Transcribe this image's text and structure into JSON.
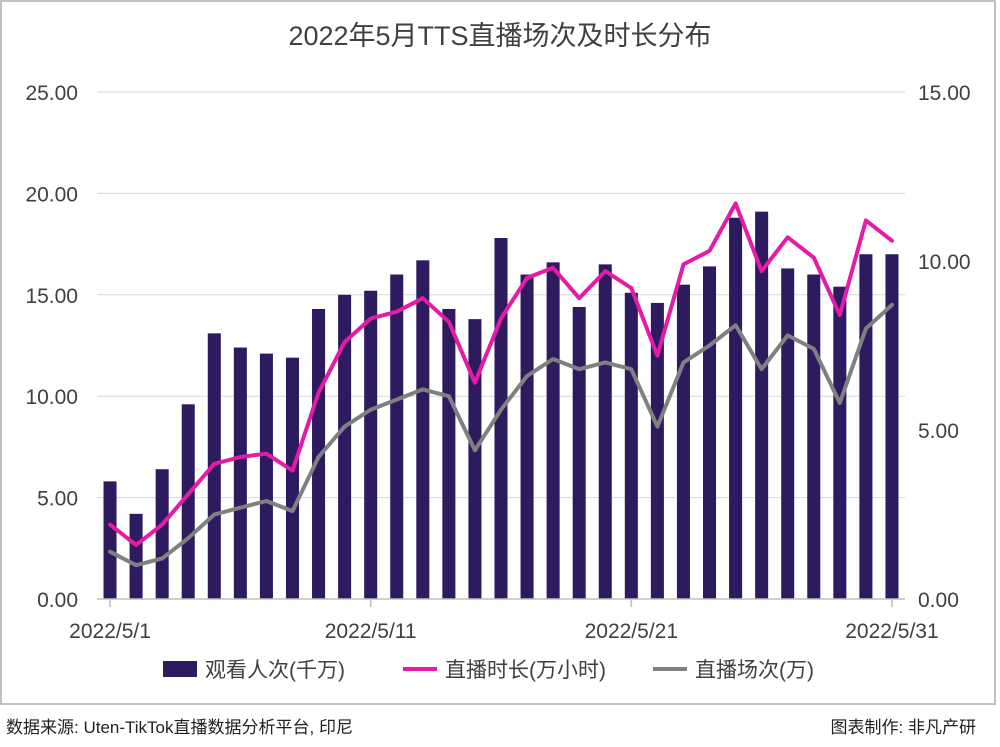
{
  "chart_data": {
    "type": "bar+line",
    "title": "2022年5月TTS直播场次及时长分布",
    "x": [
      "2022/5/1",
      "2022/5/2",
      "2022/5/3",
      "2022/5/4",
      "2022/5/5",
      "2022/5/6",
      "2022/5/7",
      "2022/5/8",
      "2022/5/9",
      "2022/5/10",
      "2022/5/11",
      "2022/5/12",
      "2022/5/13",
      "2022/5/14",
      "2022/5/15",
      "2022/5/16",
      "2022/5/17",
      "2022/5/18",
      "2022/5/19",
      "2022/5/20",
      "2022/5/21",
      "2022/5/22",
      "2022/5/23",
      "2022/5/24",
      "2022/5/25",
      "2022/5/26",
      "2022/5/27",
      "2022/5/28",
      "2022/5/29",
      "2022/5/30",
      "2022/5/31"
    ],
    "x_tick_labels": [
      "2022/5/1",
      "2022/5/11",
      "2022/5/21",
      "2022/5/31"
    ],
    "y_left": {
      "ticks": [
        "0.00",
        "5.00",
        "10.00",
        "15.00",
        "20.00",
        "25.00"
      ],
      "lim": [
        0,
        25
      ]
    },
    "y_right": {
      "ticks": [
        "0.00",
        "5.00",
        "10.00",
        "15.00"
      ],
      "lim": [
        0,
        15
      ]
    },
    "series": [
      {
        "name": "观看人次(千万)",
        "type": "bar",
        "axis": "left",
        "color": "#2e1a5e",
        "values": [
          5.8,
          4.2,
          6.4,
          9.6,
          13.1,
          12.4,
          12.1,
          11.9,
          14.3,
          15.0,
          15.2,
          16.0,
          16.7,
          14.3,
          13.8,
          17.8,
          16.0,
          16.6,
          14.4,
          16.5,
          15.1,
          14.6,
          15.5,
          16.4,
          18.8,
          19.1,
          16.3,
          16.0,
          15.4,
          17.0,
          17.0
        ]
      },
      {
        "name": "直播时长(万小时)",
        "type": "line",
        "axis": "right",
        "color": "#e31ba8",
        "values": [
          2.2,
          1.6,
          2.2,
          3.1,
          4.0,
          4.2,
          4.3,
          3.8,
          6.1,
          7.6,
          8.3,
          8.5,
          8.9,
          8.2,
          6.4,
          8.3,
          9.5,
          9.8,
          8.9,
          9.7,
          9.2,
          7.2,
          9.9,
          10.3,
          11.7,
          9.7,
          10.7,
          10.1,
          8.4,
          11.2,
          10.6
        ]
      },
      {
        "name": "直播场次(万)",
        "type": "line",
        "axis": "right",
        "color": "#808080",
        "values": [
          1.4,
          1.0,
          1.2,
          1.8,
          2.5,
          2.7,
          2.9,
          2.6,
          4.2,
          5.1,
          5.6,
          5.9,
          6.2,
          6.0,
          4.4,
          5.6,
          6.6,
          7.1,
          6.8,
          7.0,
          6.8,
          5.1,
          7.0,
          7.5,
          8.1,
          6.8,
          7.8,
          7.4,
          5.8,
          8.0,
          8.7
        ]
      }
    ],
    "legend_position": "bottom",
    "grid": true
  },
  "footer": {
    "source": "数据来源: Uten-TikTok直播数据分析平台, 印尼",
    "credit": "图表制作: 非凡产研"
  }
}
